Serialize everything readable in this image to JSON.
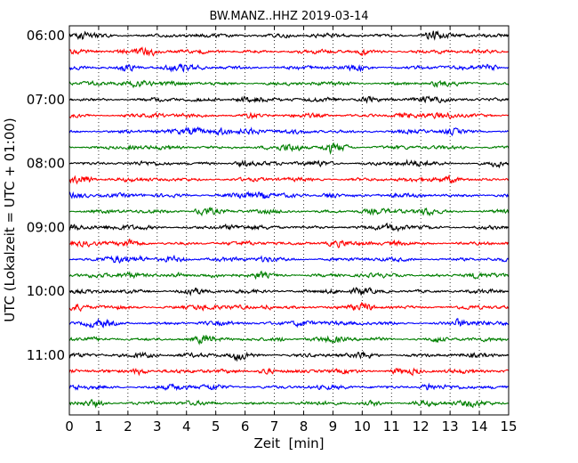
{
  "chart_data": {
    "type": "line",
    "title": "BW.MANZ..HHZ 2019-03-14",
    "xlabel": "Zeit  [min]",
    "ylabel": "UTC (Lokalzeit = UTC + 01:00)",
    "xlim": [
      0,
      15
    ],
    "x_ticks": [
      "0",
      "1",
      "2",
      "3",
      "4",
      "5",
      "6",
      "7",
      "8",
      "9",
      "10",
      "11",
      "12",
      "13",
      "14",
      "15"
    ],
    "y_tick_labels": [
      "06:00",
      "07:00",
      "08:00",
      "09:00",
      "10:00",
      "11:00"
    ],
    "trace_count": 24,
    "trace_minutes": 15,
    "grid": "vertical dotted at each minute",
    "series_colors": [
      "#000000",
      "#ff0000",
      "#0000ff",
      "#007f00"
    ]
  }
}
